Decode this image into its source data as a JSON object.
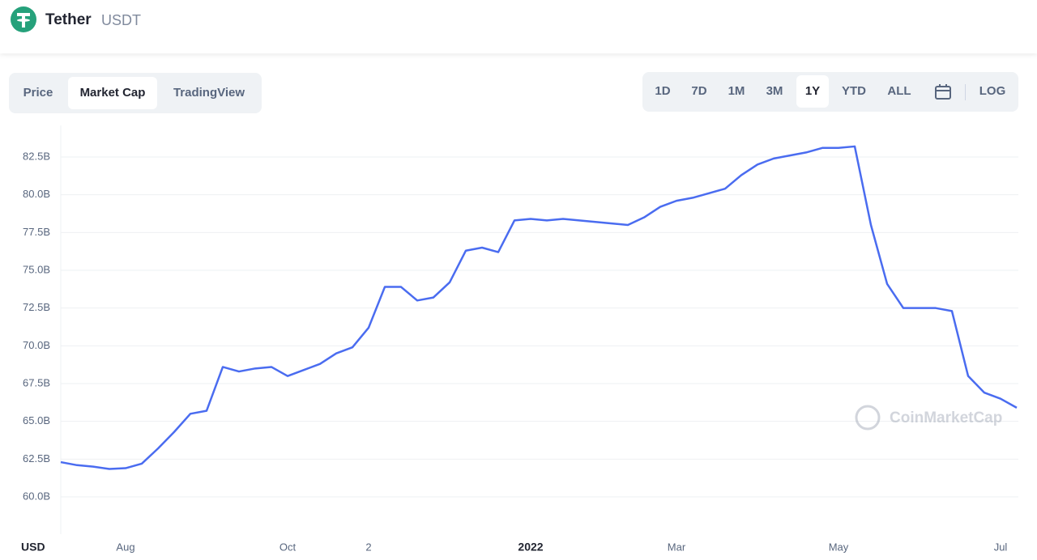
{
  "header": {
    "name": "Tether",
    "symbol": "USDT"
  },
  "tabs": [
    "Price",
    "Market Cap",
    "TradingView"
  ],
  "ranges": [
    "1D",
    "7D",
    "1M",
    "3M",
    "1Y",
    "YTD",
    "ALL"
  ],
  "log_label": "LOG",
  "currency": "USD",
  "watermark": "CoinMarketCap",
  "chart_data": {
    "type": "line",
    "color": "#4a6cf0",
    "grid": true,
    "categories": [
      null,
      null,
      null,
      null,
      "Aug",
      null,
      null,
      null,
      null,
      null,
      null,
      null,
      null,
      null,
      "Oct",
      null,
      null,
      null,
      null,
      "2",
      null,
      null,
      null,
      null,
      null,
      null,
      null,
      null,
      null,
      "2022",
      null,
      null,
      null,
      null,
      null,
      null,
      null,
      null,
      "Mar",
      null,
      null,
      null,
      null,
      null,
      null,
      null,
      null,
      null,
      "May",
      null,
      null,
      null,
      null,
      null,
      null,
      null,
      null,
      null,
      "Jul",
      null
    ],
    "values": [
      62.3,
      62.1,
      62.0,
      61.85,
      61.9,
      62.2,
      63.2,
      64.3,
      65.5,
      65.7,
      68.6,
      68.3,
      68.5,
      68.6,
      68.0,
      68.4,
      68.8,
      69.5,
      69.9,
      71.2,
      73.9,
      73.9,
      73.0,
      73.2,
      74.2,
      76.3,
      76.5,
      76.2,
      78.3,
      78.4,
      78.3,
      78.4,
      78.3,
      78.2,
      78.1,
      78.0,
      78.5,
      79.2,
      79.6,
      79.8,
      80.1,
      80.4,
      81.3,
      82.0,
      82.4,
      82.6,
      82.8,
      83.1,
      83.1,
      83.2,
      78.0,
      74.1,
      72.5,
      72.5,
      72.5,
      72.3,
      68.0,
      66.9,
      66.5,
      65.9
    ],
    "ylim": [
      57.5,
      85
    ],
    "yticks": [
      {
        "value": 60,
        "label": "60.0B"
      },
      {
        "value": 62.5,
        "label": "62.5B"
      },
      {
        "value": 65,
        "label": "65.0B"
      },
      {
        "value": 67.5,
        "label": "67.5B"
      },
      {
        "value": 70,
        "label": "70.0B"
      },
      {
        "value": 72.5,
        "label": "72.5B"
      },
      {
        "value": 75,
        "label": "75.0B"
      },
      {
        "value": 77.5,
        "label": "77.5B"
      },
      {
        "value": 80,
        "label": "80.0B"
      },
      {
        "value": 82.5,
        "label": "82.5B"
      }
    ]
  }
}
